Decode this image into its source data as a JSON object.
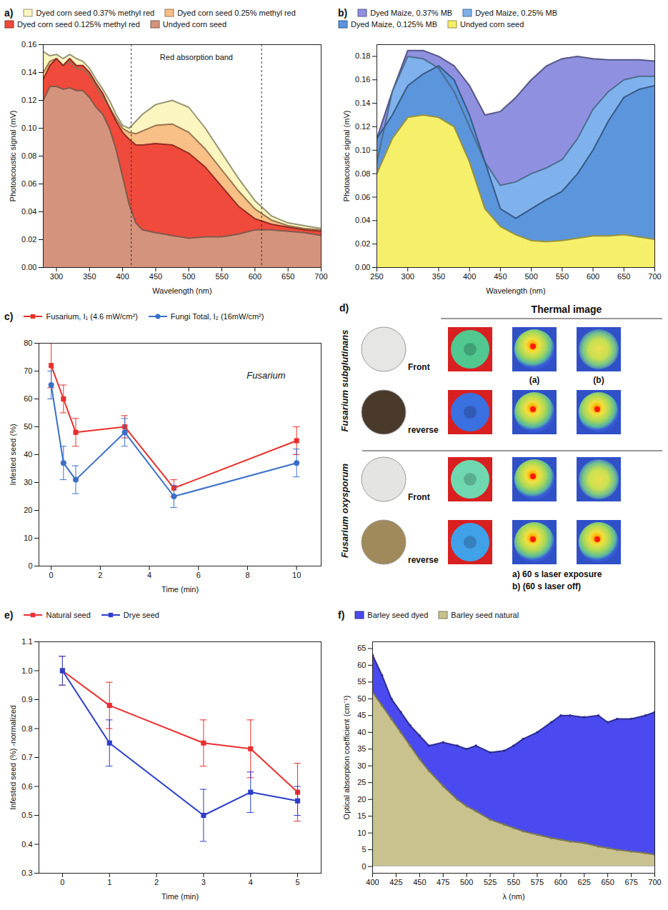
{
  "chart_data": [
    {
      "type": "area",
      "title": "a)",
      "xlabel": "Wavelength (nm)",
      "ylabel": "Photoacoustic signal (mV)",
      "x": [
        280,
        290,
        300,
        310,
        320,
        330,
        340,
        350,
        360,
        370,
        380,
        390,
        400,
        410,
        420,
        430,
        450,
        475,
        500,
        525,
        550,
        575,
        600,
        625,
        650,
        675,
        700
      ],
      "series": [
        {
          "name": "Dyed corn seed 0.37% methyl red",
          "color": "#fbf5c0",
          "values": [
            0.155,
            0.152,
            0.153,
            0.15,
            0.153,
            0.15,
            0.148,
            0.143,
            0.135,
            0.128,
            0.12,
            0.11,
            0.102,
            0.1,
            0.105,
            0.11,
            0.117,
            0.12,
            0.115,
            0.1,
            0.082,
            0.064,
            0.048,
            0.037,
            0.032,
            0.03,
            0.028
          ]
        },
        {
          "name": "Dyed corn seed 0.25% methyl red",
          "color": "#f8bf86",
          "values": [
            0.14,
            0.148,
            0.15,
            0.145,
            0.148,
            0.143,
            0.142,
            0.138,
            0.13,
            0.122,
            0.115,
            0.107,
            0.1,
            0.097,
            0.096,
            0.098,
            0.102,
            0.103,
            0.097,
            0.085,
            0.07,
            0.055,
            0.042,
            0.034,
            0.03,
            0.028,
            0.027
          ]
        },
        {
          "name": "Dyed corn seed 0.125% methyl red",
          "color": "#f04a3c",
          "values": [
            0.135,
            0.145,
            0.15,
            0.145,
            0.15,
            0.145,
            0.145,
            0.14,
            0.132,
            0.125,
            0.115,
            0.105,
            0.097,
            0.092,
            0.088,
            0.088,
            0.089,
            0.088,
            0.082,
            0.072,
            0.058,
            0.044,
            0.035,
            0.031,
            0.029,
            0.027,
            0.026
          ]
        },
        {
          "name": "Undyed corn seed",
          "color": "#d4937c",
          "values": [
            0.12,
            0.13,
            0.13,
            0.128,
            0.129,
            0.127,
            0.127,
            0.122,
            0.115,
            0.11,
            0.1,
            0.085,
            0.065,
            0.045,
            0.032,
            0.027,
            0.025,
            0.023,
            0.021,
            0.022,
            0.022,
            0.024,
            0.027,
            0.027,
            0.026,
            0.025,
            0.023
          ]
        }
      ],
      "xlim": [
        280,
        700
      ],
      "xticks": [
        300,
        350,
        400,
        450,
        500,
        550,
        600,
        650,
        700
      ],
      "ylim": [
        0,
        0.16
      ],
      "yticks": [
        {
          "value": 0,
          "label": "0.00"
        },
        {
          "value": 0.02,
          "label": "0.02"
        },
        {
          "value": 0.04,
          "label": "0.04"
        },
        {
          "value": 0.06,
          "label": "0.06"
        },
        {
          "value": 0.08,
          "label": "0.08"
        },
        {
          "value": 0.1,
          "label": "0.10"
        },
        {
          "value": 0.12,
          "label": "0.12"
        },
        {
          "value": 0.14,
          "label": "0.14"
        },
        {
          "value": 0.16,
          "label": "0.16"
        }
      ],
      "band": [
        413,
        610
      ],
      "annotations": [
        {
          "text": "Red absorption band"
        }
      ],
      "legend": "top",
      "grid": false
    },
    {
      "type": "area",
      "title": "b)",
      "xlabel": "Wavelength (nm)",
      "ylabel": "Photoacoustic signal (mV)",
      "x": [
        250,
        275,
        300,
        325,
        350,
        375,
        400,
        425,
        450,
        475,
        500,
        525,
        550,
        575,
        600,
        625,
        650,
        675,
        700
      ],
      "series": [
        {
          "name": "Dyed Maize, 0.37% MB",
          "color": "#9090e0",
          "values": [
            0.11,
            0.15,
            0.185,
            0.185,
            0.18,
            0.172,
            0.155,
            0.13,
            0.133,
            0.145,
            0.16,
            0.172,
            0.178,
            0.18,
            0.178,
            0.177,
            0.177,
            0.177,
            0.176
          ]
        },
        {
          "name": "Dyed Maize, 0.25% MB",
          "color": "#7fb2ec",
          "values": [
            0.09,
            0.15,
            0.18,
            0.178,
            0.17,
            0.15,
            0.12,
            0.09,
            0.07,
            0.073,
            0.08,
            0.085,
            0.092,
            0.11,
            0.135,
            0.15,
            0.16,
            0.163,
            0.163
          ]
        },
        {
          "name": "Dyed Maize, 0.125% MB",
          "color": "#5b95dc",
          "values": [
            0.11,
            0.13,
            0.155,
            0.165,
            0.172,
            0.16,
            0.13,
            0.09,
            0.05,
            0.042,
            0.05,
            0.058,
            0.065,
            0.08,
            0.1,
            0.125,
            0.145,
            0.152,
            0.155
          ]
        },
        {
          "name": "Undyed corn seed",
          "color": "#f5ef6a",
          "values": [
            0.08,
            0.11,
            0.128,
            0.13,
            0.128,
            0.12,
            0.09,
            0.05,
            0.035,
            0.028,
            0.023,
            0.022,
            0.023,
            0.025,
            0.027,
            0.027,
            0.028,
            0.026,
            0.024
          ]
        }
      ],
      "xlim": [
        250,
        700
      ],
      "xticks": [
        250,
        300,
        350,
        400,
        450,
        500,
        550,
        600,
        650,
        700
      ],
      "ylim": [
        0,
        0.19
      ],
      "yticks": [
        {
          "value": 0,
          "label": "0.00"
        },
        {
          "value": 0.02,
          "label": "0.02"
        },
        {
          "value": 0.04,
          "label": "0.04"
        },
        {
          "value": 0.06,
          "label": "0.06"
        },
        {
          "value": 0.08,
          "label": "0.08"
        },
        {
          "value": 0.1,
          "label": "0.10"
        },
        {
          "value": 0.12,
          "label": "0.12"
        },
        {
          "value": 0.14,
          "label": "0.14"
        },
        {
          "value": 0.16,
          "label": "0.16"
        },
        {
          "value": 0.18,
          "label": "0.18"
        }
      ],
      "legend": "top",
      "grid": false
    },
    {
      "type": "line",
      "title": "c)",
      "xlabel": "Time (min)",
      "ylabel": "Infested seed (%)",
      "x": [
        0,
        0.5,
        1,
        3,
        5,
        10
      ],
      "series": [
        {
          "name": "Fusarium, I₁ (4.6 mW/cm²)",
          "color": "#e8302a",
          "marker": "square",
          "values": [
            72,
            60,
            48,
            50,
            28,
            45
          ],
          "errors": [
            8,
            5,
            5,
            4,
            3,
            5
          ]
        },
        {
          "name": "Fungi Total, I₂ (16mW/cm²)",
          "color": "#3a6fc8",
          "marker": "circle",
          "values": [
            65,
            37,
            31,
            48,
            25,
            37
          ],
          "errors": [
            5,
            6,
            5,
            5,
            4,
            5
          ]
        }
      ],
      "xlim": [
        -0.5,
        11
      ],
      "xticks": [
        0,
        2,
        4,
        6,
        8,
        10
      ],
      "ylim": [
        0,
        80
      ],
      "yticks": [
        0,
        10,
        20,
        30,
        40,
        50,
        60,
        70,
        80
      ],
      "annotations": [
        {
          "text": "Fusarium"
        }
      ],
      "legend": "top",
      "grid": false
    },
    {
      "type": "line",
      "title": "e)",
      "xlabel": "Time (min)",
      "ylabel": "Infested seed (%) -normalized",
      "x": [
        0,
        1,
        3,
        4,
        5
      ],
      "series": [
        {
          "name": "Natural seed",
          "color": "#e83030",
          "marker": "square",
          "values": [
            1.0,
            0.88,
            0.75,
            0.73,
            0.58
          ],
          "errors": [
            0.05,
            0.08,
            0.08,
            0.1,
            0.1
          ]
        },
        {
          "name": "Drye seed",
          "color": "#2c3ec8",
          "marker": "square",
          "values": [
            1.0,
            0.75,
            0.5,
            0.58,
            0.55
          ],
          "errors": [
            0.05,
            0.08,
            0.09,
            0.07,
            0.05
          ]
        }
      ],
      "xlim": [
        -0.5,
        5.5
      ],
      "xticks": [
        0,
        1,
        2,
        3,
        4,
        5
      ],
      "ylim": [
        0.3,
        1.1
      ],
      "yticks": [
        0.3,
        0.4,
        0.5,
        0.6,
        0.7,
        0.8,
        0.9,
        {
          "value": 1,
          "label": "1.0"
        },
        1.1
      ],
      "legend": "top",
      "grid": false
    },
    {
      "type": "area",
      "title": "f)",
      "xlabel": "λ (nm)",
      "ylabel": "Optical absorption coefficient (cm⁻¹)",
      "x": [
        400,
        410,
        420,
        430,
        440,
        450,
        460,
        475,
        490,
        500,
        510,
        525,
        540,
        550,
        560,
        575,
        590,
        600,
        610,
        625,
        640,
        650,
        660,
        675,
        690,
        700
      ],
      "series": [
        {
          "name": "Barley seed dyed",
          "color": "#4a4af0",
          "marker": "circle",
          "values": [
            63,
            57,
            50,
            46,
            42,
            39,
            36,
            37,
            36,
            35,
            36,
            34,
            34.5,
            36,
            38,
            40,
            43,
            45,
            45,
            44.5,
            45,
            43,
            44,
            44,
            45,
            46
          ]
        },
        {
          "name": "Barley seed natural",
          "color": "#c9c28e",
          "marker": "circle",
          "values": [
            52,
            48,
            44,
            40,
            36,
            32,
            28.5,
            24,
            20,
            18,
            16.5,
            14,
            12.5,
            11.5,
            10.5,
            9.5,
            8.5,
            8,
            7.5,
            7,
            6,
            5.5,
            5,
            4.5,
            4,
            3.5
          ]
        }
      ],
      "xlim": [
        400,
        700
      ],
      "xticks": [
        400,
        425,
        450,
        475,
        500,
        525,
        550,
        575,
        600,
        625,
        650,
        675,
        700
      ],
      "ylim": [
        -2,
        67
      ],
      "yticks": [
        0,
        5,
        10,
        15,
        20,
        25,
        30,
        35,
        40,
        45,
        50,
        55,
        60,
        65
      ],
      "legend": "top",
      "grid": false
    }
  ],
  "panel_d": {
    "title": "d)",
    "header": "Thermal image",
    "groups": [
      {
        "name": "Fusarium subglutinans",
        "rows": [
          "Front",
          "reverse"
        ]
      },
      {
        "name": "Fusarium oxysporum",
        "rows": [
          "Front",
          "reverse"
        ]
      }
    ],
    "columns": [
      "(a)",
      "(b)"
    ],
    "notes": [
      "a) 60 s laser exposure",
      "b) (60 s laser off)"
    ]
  }
}
